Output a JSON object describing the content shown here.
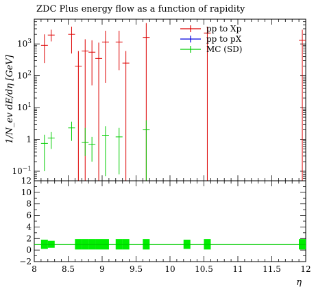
{
  "chart_data": {
    "type": "scatter",
    "title": "ZDC Plus energy flow as a function of rapidity",
    "xlabel": "η",
    "ylabel": "1/N_ev dE/dη [GeV]",
    "xlim": [
      8,
      12
    ],
    "ylim": [
      0.05,
      6000
    ],
    "yscale": "log",
    "ratio_ylim": [
      -2,
      12
    ],
    "x_ticks": [
      "8",
      "8.5",
      "9",
      "9.5",
      "10",
      "10.5",
      "11",
      "11.5",
      "12"
    ],
    "y_ticks": [
      "10^-1",
      "1",
      "10^1",
      "10^2",
      "10^3"
    ],
    "ratio_y_ticks": [
      "−2",
      "0",
      "2",
      "4",
      "6",
      "8",
      "10",
      "12"
    ],
    "legend_position": "top-right",
    "series": [
      {
        "name": "pp to Xp",
        "color": "#dd0000",
        "points": [
          {
            "x": 8.15,
            "y": 900,
            "ylo": 250,
            "yhi": 2000
          },
          {
            "x": 8.25,
            "y": 1900,
            "ylo": 1200,
            "yhi": 2800
          },
          {
            "x": 8.55,
            "y": 2000,
            "ylo": 500,
            "yhi": 3500
          },
          {
            "x": 8.65,
            "y": 200,
            "ylo": 0.05,
            "yhi": 600
          },
          {
            "x": 8.75,
            "y": 600,
            "ylo": 0.05,
            "yhi": 1400
          },
          {
            "x": 8.85,
            "y": 550,
            "ylo": 50,
            "yhi": 1300
          },
          {
            "x": 8.95,
            "y": 350,
            "ylo": 0.05,
            "yhi": 1100
          },
          {
            "x": 9.05,
            "y": 1150,
            "ylo": 60,
            "yhi": 2600
          },
          {
            "x": 9.25,
            "y": 1150,
            "ylo": 150,
            "yhi": 2600
          },
          {
            "x": 9.35,
            "y": 250,
            "ylo": 0.05,
            "yhi": 600
          },
          {
            "x": 9.65,
            "y": 1600,
            "ylo": 0.05,
            "yhi": 4500
          },
          {
            "x": 10.55,
            "y": 2200,
            "ylo": 0.05,
            "yhi": 3500
          },
          {
            "x": 11.95,
            "y": 1300,
            "ylo": 0.05,
            "yhi": 2800
          }
        ]
      },
      {
        "name": "pp to pX",
        "color": "#0000dd",
        "points": []
      },
      {
        "name": "MC (SD)",
        "color": "#00cc00",
        "points": [
          {
            "x": 8.15,
            "y": 0.75,
            "ylo": 0.1,
            "yhi": 1.4
          },
          {
            "x": 8.25,
            "y": 1.1,
            "ylo": 0.5,
            "yhi": 1.7
          },
          {
            "x": 8.55,
            "y": 2.3,
            "ylo": 0.9,
            "yhi": 3.6
          },
          {
            "x": 8.75,
            "y": 0.8,
            "ylo": 0.3,
            "yhi": 2.3
          },
          {
            "x": 8.85,
            "y": 0.7,
            "ylo": 0.2,
            "yhi": 1.2
          },
          {
            "x": 9.05,
            "y": 1.35,
            "ylo": 0.07,
            "yhi": 2.6
          },
          {
            "x": 9.25,
            "y": 1.2,
            "ylo": 0.08,
            "yhi": 2.3
          },
          {
            "x": 9.65,
            "y": 2.0,
            "ylo": 0.05,
            "yhi": 4.0
          }
        ]
      }
    ],
    "ratio": {
      "line_y": 1,
      "line_color": "#00cc00",
      "bands": [
        {
          "x": 8.15,
          "lo": 0.2,
          "hi": 1.8
        },
        {
          "x": 8.25,
          "lo": 0.4,
          "hi": 1.6
        },
        {
          "x": 8.65,
          "lo": 0.1,
          "hi": 1.9
        },
        {
          "x": 8.75,
          "lo": 0.1,
          "hi": 1.9
        },
        {
          "x": 8.85,
          "lo": 0.1,
          "hi": 1.9
        },
        {
          "x": 8.95,
          "lo": 0.1,
          "hi": 1.9
        },
        {
          "x": 9.05,
          "lo": 0.1,
          "hi": 1.9
        },
        {
          "x": 9.25,
          "lo": 0.1,
          "hi": 1.9
        },
        {
          "x": 9.35,
          "lo": 0.1,
          "hi": 1.9
        },
        {
          "x": 9.65,
          "lo": 0.1,
          "hi": 1.9
        },
        {
          "x": 10.25,
          "lo": 0.2,
          "hi": 1.8
        },
        {
          "x": 10.55,
          "lo": 0.1,
          "hi": 1.9
        },
        {
          "x": 11.95,
          "lo": 0.1,
          "hi": 1.9
        }
      ]
    }
  }
}
